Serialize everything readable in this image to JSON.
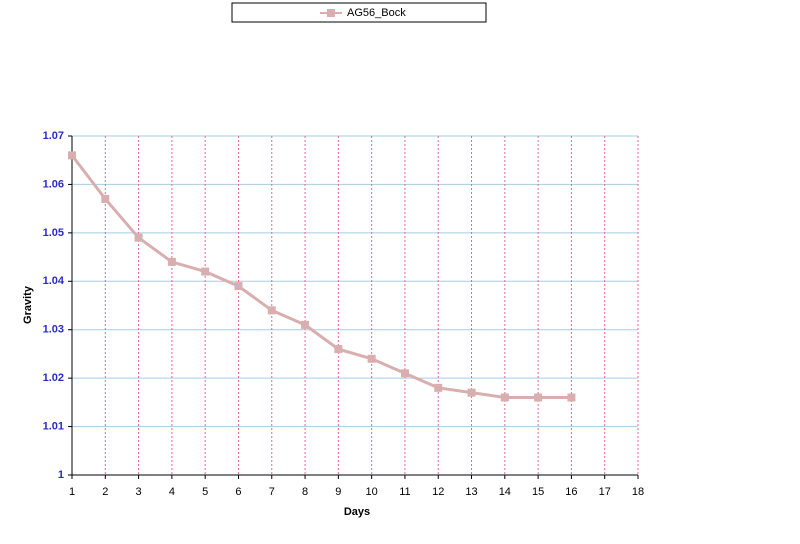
{
  "chart_data": {
    "type": "line",
    "x": [
      1,
      2,
      3,
      4,
      5,
      6,
      7,
      8,
      9,
      10,
      11,
      12,
      13,
      14,
      15,
      16
    ],
    "series": [
      {
        "name": "AG56_Bock",
        "color": "#d8aeae",
        "values": [
          1.066,
          1.057,
          1.049,
          1.044,
          1.042,
          1.039,
          1.034,
          1.031,
          1.026,
          1.024,
          1.021,
          1.018,
          1.017,
          1.016,
          1.016,
          1.016
        ]
      }
    ],
    "xlabel": "Days",
    "ylabel": "Gravity",
    "xlim": [
      1,
      18
    ],
    "xticks": [
      1,
      2,
      3,
      4,
      5,
      6,
      7,
      8,
      9,
      10,
      11,
      12,
      13,
      14,
      15,
      16,
      17,
      18
    ],
    "ylim": [
      1,
      1.07
    ],
    "yticks": [
      1,
      1.01,
      1.02,
      1.03,
      1.04,
      1.05,
      1.06,
      1.07
    ],
    "grid": true,
    "legend": "top"
  }
}
